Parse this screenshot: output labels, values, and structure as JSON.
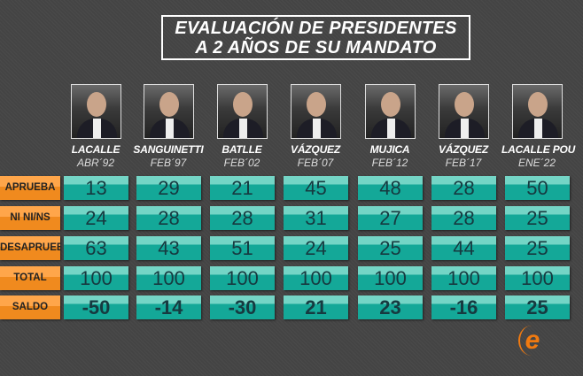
{
  "title_line1": "EVALUACIÓN DE PRESIDENTES",
  "title_line2": "A 2 AÑOS DE SU MANDATO",
  "logo_letter": "e",
  "colors": {
    "cell": "#14a898",
    "label": "#f08a1e",
    "text": "#163a40"
  },
  "chart_data": {
    "type": "table",
    "title": "EVALUACIÓN DE PRESIDENTES A 2 AÑOS DE SU MANDATO",
    "columns": [
      {
        "name": "LACALLE",
        "date": "ABR´92"
      },
      {
        "name": "SANGUINETTI",
        "date": "FEB´97"
      },
      {
        "name": "BATLLE",
        "date": "FEB´02"
      },
      {
        "name": "VÁZQUEZ",
        "date": "FEB´07"
      },
      {
        "name": "MUJICA",
        "date": "FEB´12"
      },
      {
        "name": "VÁZQUEZ",
        "date": "FEB´17"
      },
      {
        "name": "LACALLE POU",
        "date": "ENE´22"
      }
    ],
    "rows": [
      {
        "label": "APRUEBA",
        "values": [
          "13",
          "29",
          "21",
          "45",
          "48",
          "28",
          "50"
        ]
      },
      {
        "label": "NI NI/NS",
        "values": [
          "24",
          "28",
          "28",
          "31",
          "27",
          "28",
          "25"
        ]
      },
      {
        "label": "DESAPRUEBA",
        "values": [
          "63",
          "43",
          "51",
          "24",
          "25",
          "44",
          "25"
        ]
      },
      {
        "label": "TOTAL",
        "values": [
          "100",
          "100",
          "100",
          "100",
          "100",
          "100",
          "100"
        ]
      },
      {
        "label": "SALDO",
        "values": [
          "-50",
          "-14",
          "-30",
          "21",
          "23",
          "-16",
          "25"
        ]
      }
    ]
  }
}
